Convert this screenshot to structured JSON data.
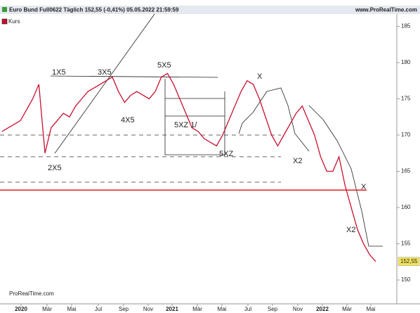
{
  "chart_data": {
    "type": "line",
    "title": "Euro Bund Full0622 Täglich 152,55 (-0,41%) 05.05.2022 21:59:59",
    "source": "www.ProRealTime.com",
    "footer": "ProRealTime.com",
    "series": [
      {
        "name": "Kurs",
        "color": "#c8102e",
        "values": [
          170.5,
          171,
          171.5,
          172,
          173.5,
          175,
          177,
          167.5,
          171,
          172,
          173,
          172.5,
          174,
          175,
          176,
          176.5,
          177,
          177.5,
          178,
          176,
          174.5,
          175.5,
          176,
          175.5,
          175,
          176,
          178,
          178.5,
          177,
          175,
          173,
          171,
          170.5,
          169.5,
          169,
          168.5,
          170,
          172,
          174,
          176,
          177.5,
          177,
          175,
          172.5,
          170,
          168.5,
          170,
          171.5,
          173,
          174,
          172,
          170,
          167,
          165,
          165,
          167,
          163,
          160,
          157,
          155,
          153.5,
          152.55
        ]
      }
    ],
    "last_label": {
      "value": 152.55,
      "label": "152,55"
    },
    "hline": {
      "value": 162.4,
      "color": "#e02020"
    },
    "dashed_levels": [
      170,
      167,
      163.5
    ],
    "ylim": [
      146.9,
      186.5
    ],
    "yticks": [
      150,
      155,
      160,
      165,
      170,
      175,
      180,
      185
    ],
    "xtick_labels": [
      "2020",
      "Mär",
      "Mai",
      "Jul",
      "Sep",
      "Nov",
      "2021",
      "Mär",
      "Mai",
      "Jul",
      "Sep",
      "Nov",
      "2022",
      "Mär",
      "Mai"
    ],
    "annotations": [
      "1X5",
      "3X5",
      "5X5",
      "X",
      "4X5",
      "5XZ 1/",
      "5XZ",
      "X2",
      "2X5",
      "X",
      "X2"
    ]
  }
}
